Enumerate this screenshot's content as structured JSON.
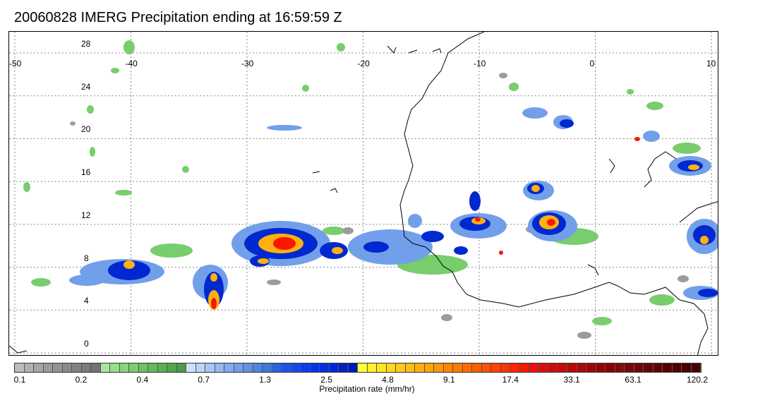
{
  "title": "20060828 IMERG Precipitation ending at 16:59:59 Z",
  "map": {
    "lon_range": [
      -50,
      10
    ],
    "lat_range": [
      0,
      30
    ],
    "lon_ticks": [
      "-50",
      "-40",
      "-30",
      "-20",
      "-10",
      "0",
      "10"
    ],
    "lat_ticks": [
      "28",
      "24",
      "20",
      "16",
      "12",
      "8",
      "4",
      "0"
    ],
    "coastline_color": "#000000",
    "grid_color": "#888888"
  },
  "colorbar": {
    "label": "Precipitation rate (mm/hr)",
    "tick_labels": [
      "0.1",
      "0.2",
      "0.4",
      "0.7",
      "1.3",
      "2.5",
      "4.8",
      "9.1",
      "17.4",
      "33.1",
      "63.1",
      "120.2"
    ],
    "colors": [
      "#bdbdbd",
      "#b0b0b0",
      "#a6a6a6",
      "#9c9c9c",
      "#939393",
      "#8a8a8a",
      "#828282",
      "#7b7b7b",
      "#737373",
      "#a8e6a0",
      "#96de8c",
      "#86d67a",
      "#78cd6c",
      "#6cc461",
      "#62ba58",
      "#59b052",
      "#53a64c",
      "#4c9b47",
      "#cfe0ff",
      "#bcd3fb",
      "#a9c6f7",
      "#97b9f3",
      "#85acef",
      "#729fea",
      "#6092e5",
      "#4f85e0",
      "#3d78db",
      "#2a62e6",
      "#1d55ea",
      "#1249ee",
      "#083ef2",
      "#0036f0",
      "#002fe0",
      "#0028d0",
      "#0021c0",
      "#001ab0",
      "#ffff33",
      "#fff22a",
      "#ffe522",
      "#ffd81b",
      "#ffca16",
      "#ffbd12",
      "#ffb00f",
      "#ffa20c",
      "#ff950a",
      "#ff8800",
      "#ff7a00",
      "#ff6c00",
      "#ff5e00",
      "#ff5000",
      "#ff4200",
      "#ff3400",
      "#ff2600",
      "#f71800",
      "#e81010",
      "#dc0e0e",
      "#d00c0c",
      "#c40a0a",
      "#b80808",
      "#ac0606",
      "#a00404",
      "#940202",
      "#880000",
      "#7e0a0a",
      "#760808",
      "#6e0606",
      "#660404",
      "#5e0202",
      "#560000",
      "#500000",
      "#4a0000",
      "#440000"
    ]
  }
}
